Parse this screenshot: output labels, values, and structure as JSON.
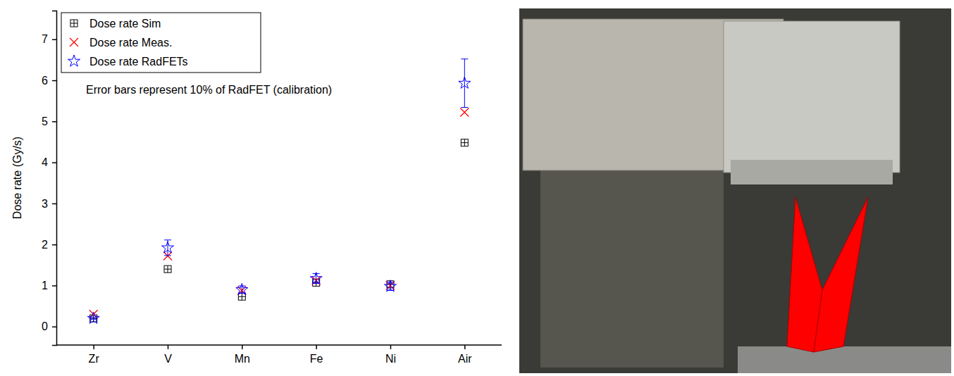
{
  "chart_data": {
    "type": "scatter",
    "y_label": "Dose rate (Gy/s)",
    "annotation": "Error bars represent 10% of RadFET (calibration)",
    "categories": [
      "Zr",
      "V",
      "Mn",
      "Fe",
      "Ni",
      "Air"
    ],
    "series": [
      {
        "name": "Dose rate Sim",
        "color": "#000000",
        "marker": "square",
        "values": [
          0.2,
          1.4,
          0.73,
          1.07,
          1.03,
          4.48
        ]
      },
      {
        "name": "Dose rate Meas.",
        "color": "#ff0000",
        "marker": "x",
        "values": [
          0.3,
          1.72,
          0.88,
          1.12,
          1.0,
          5.22
        ]
      },
      {
        "name": "Dose rate RadFETs",
        "color": "#0000ff",
        "marker": "star",
        "values": [
          0.2,
          1.92,
          0.9,
          1.17,
          0.98,
          5.93
        ],
        "errors": [
          0.02,
          0.19,
          0.09,
          0.12,
          0.1,
          0.59
        ]
      }
    ],
    "ylim": [
      -0.45,
      7.7
    ],
    "yticks": [
      0,
      1,
      2,
      3,
      4,
      5,
      6,
      7
    ],
    "legend": "top-left",
    "grid": false
  }
}
